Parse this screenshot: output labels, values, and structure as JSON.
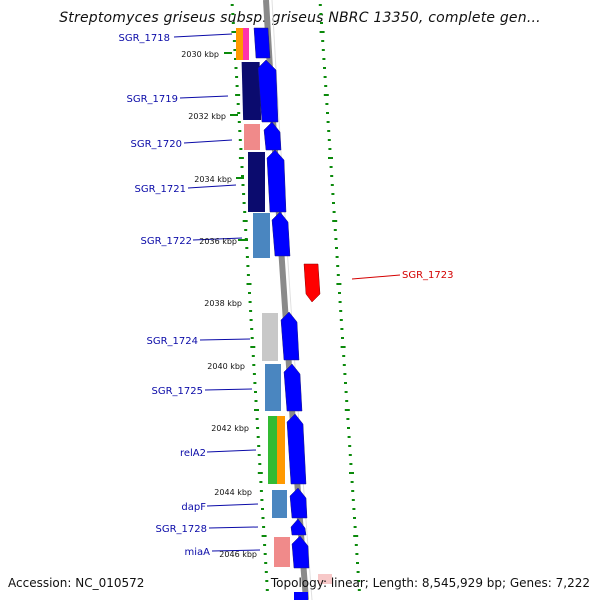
{
  "title": "Streptomyces griseus subsp. griseus NBRC 13350, complete gen...",
  "accession": "Accession: NC_010572",
  "summary": "Topology: linear; Length: 8,545,929 bp; Genes: 7,222",
  "kbp_ticks": [
    "2030 kbp",
    "2032 kbp",
    "2034 kbp",
    "2036 kbp",
    "2038 kbp",
    "2040 kbp",
    "2042 kbp",
    "2044 kbp",
    "2046 kbp"
  ],
  "genes": [
    {
      "label": "SGR_1718",
      "strand": "forward",
      "color": "#0000ff",
      "annotation_colors": [
        "#ff9900",
        "#ff33aa"
      ]
    },
    {
      "label": "SGR_1719",
      "strand": "forward",
      "color": "#0000ff",
      "annotation_colors": [
        "#0b0b6e"
      ]
    },
    {
      "label": "SGR_1720",
      "strand": "forward",
      "color": "#0000ff",
      "annotation_colors": [
        "#f08a8a"
      ]
    },
    {
      "label": "SGR_1721",
      "strand": "forward",
      "color": "#0000ff",
      "annotation_colors": [
        "#0b0b6e"
      ]
    },
    {
      "label": "SGR_1722",
      "strand": "forward",
      "color": "#0000ff",
      "annotation_colors": [
        "#4a86c0"
      ]
    },
    {
      "label": "SGR_1723",
      "strand": "reverse",
      "color": "#ff0000",
      "annotation_colors": []
    },
    {
      "label": "SGR_1724",
      "strand": "forward",
      "color": "#0000ff",
      "annotation_colors": [
        "#c8c8c8"
      ]
    },
    {
      "label": "SGR_1725",
      "strand": "forward",
      "color": "#0000ff",
      "annotation_colors": [
        "#4a86c0"
      ]
    },
    {
      "label": "relA2",
      "strand": "forward",
      "color": "#0000ff",
      "annotation_colors": [
        "#33bb33",
        "#ff9900"
      ]
    },
    {
      "label": "dapF",
      "strand": "forward",
      "color": "#0000ff",
      "annotation_colors": [
        "#4a86c0"
      ]
    },
    {
      "label": "SGR_1728",
      "strand": "forward",
      "color": "#0000ff",
      "annotation_colors": []
    },
    {
      "label": "miaA",
      "strand": "forward",
      "color": "#0000ff",
      "annotation_colors": [
        "#f08a8a"
      ]
    }
  ]
}
